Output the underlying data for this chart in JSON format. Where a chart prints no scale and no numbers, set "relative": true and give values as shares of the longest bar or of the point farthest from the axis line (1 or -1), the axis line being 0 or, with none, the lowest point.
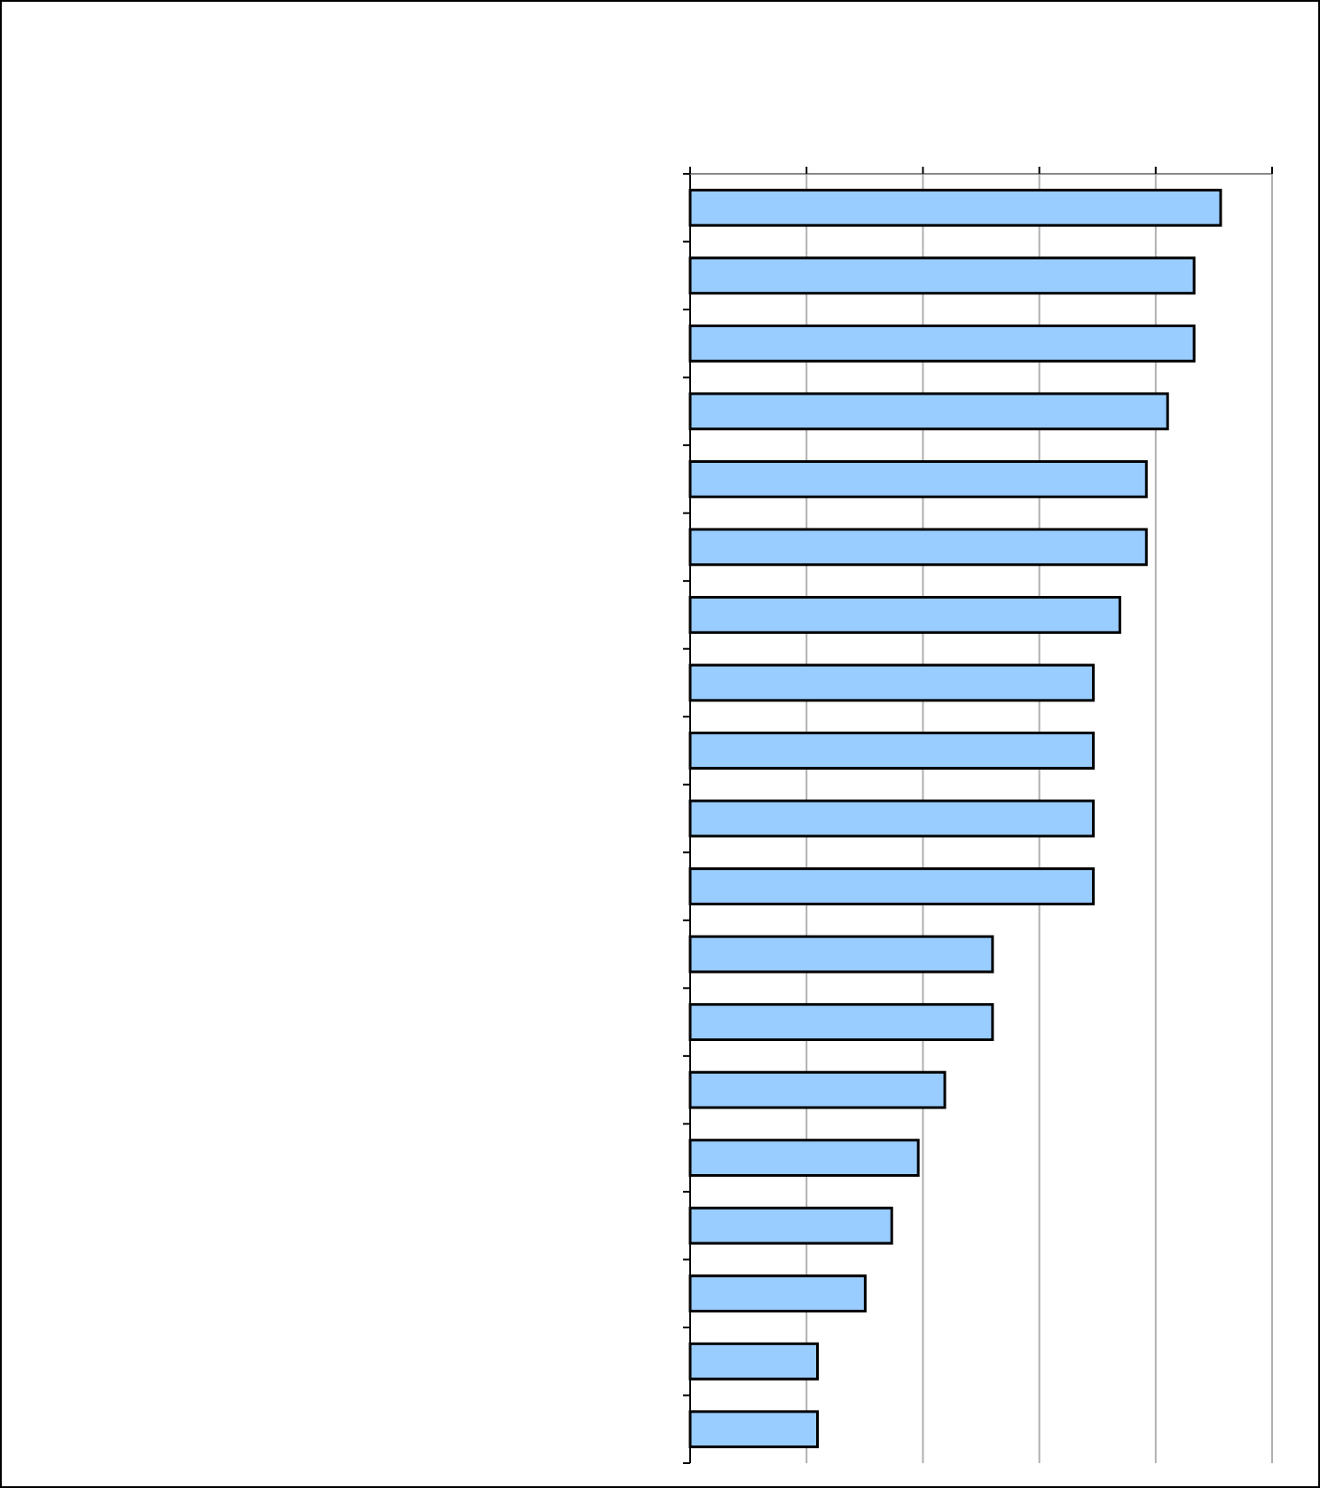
{
  "chart_data": {
    "type": "bar",
    "orientation": "horizontal",
    "relative": true,
    "grid": "x",
    "color": "#99ccff",
    "categories": [
      null,
      null,
      null,
      null,
      null,
      null,
      null,
      null,
      null,
      null,
      null,
      null,
      null,
      null,
      null,
      null,
      null,
      null,
      null
    ],
    "values": [
      1,
      0.95,
      0.95,
      0.9,
      0.86,
      0.86,
      0.81,
      0.76,
      0.76,
      0.76,
      0.76,
      0.57,
      0.57,
      0.48,
      0.43,
      0.38,
      0.33,
      0.24,
      0.24
    ]
  }
}
